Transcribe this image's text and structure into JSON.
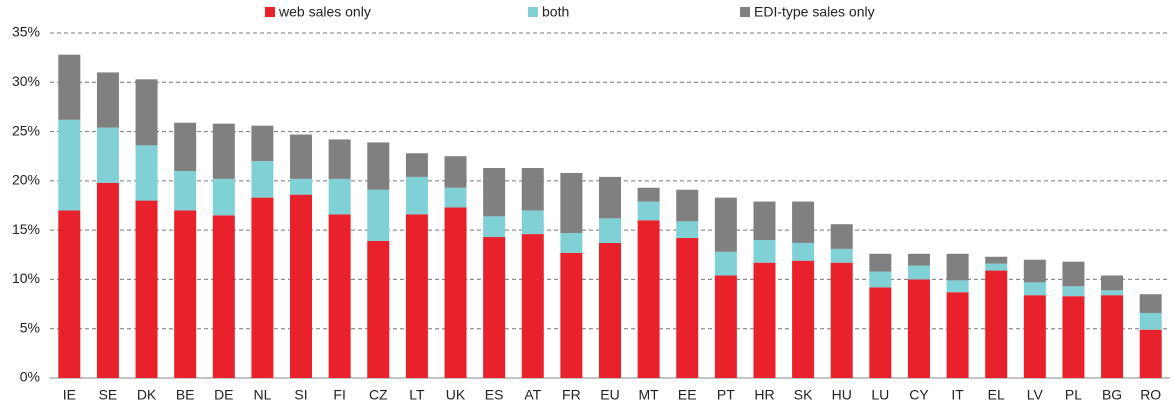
{
  "chart_data": {
    "type": "stacked_bar",
    "categories": [
      "IE",
      "SE",
      "DK",
      "BE",
      "DE",
      "NL",
      "SI",
      "FI",
      "CZ",
      "LT",
      "UK",
      "ES",
      "AT",
      "FR",
      "EU",
      "MT",
      "EE",
      "PT",
      "HR",
      "SK",
      "HU",
      "LU",
      "CY",
      "IT",
      "EL",
      "LV",
      "PL",
      "BG",
      "RO"
    ],
    "series": [
      {
        "name": "web sales only",
        "color": "#e8212b",
        "values": [
          17,
          19.8,
          18,
          17,
          16.5,
          18.3,
          18.6,
          16.6,
          13.9,
          16.6,
          17.3,
          14.3,
          14.6,
          12.7,
          13.7,
          16,
          14.2,
          10.4,
          11.7,
          11.9,
          11.7,
          9.2,
          10,
          8.7,
          10.9,
          8.4,
          8.3,
          8.4,
          4.9
        ]
      },
      {
        "name": "both",
        "color": "#7fd1d6",
        "values": [
          9.2,
          5.6,
          5.6,
          4,
          3.7,
          3.7,
          1.6,
          3.6,
          5.2,
          3.8,
          2,
          2.1,
          2.4,
          2,
          2.5,
          1.9,
          1.7,
          2.4,
          2.3,
          1.8,
          1.4,
          1.6,
          1.4,
          1.2,
          0.7,
          1.3,
          1,
          0.5,
          1.7
        ]
      },
      {
        "name": "EDI-type sales only",
        "color": "#808080",
        "values": [
          6.6,
          5.6,
          6.7,
          4.9,
          5.6,
          3.6,
          4.5,
          4,
          4.8,
          2.4,
          3.2,
          4.9,
          4.3,
          6.1,
          4.2,
          1.4,
          3.2,
          5.5,
          3.9,
          4.2,
          2.5,
          1.8,
          1.2,
          2.7,
          0.7,
          2.3,
          2.5,
          1.5,
          1.9
        ]
      }
    ],
    "ylim": [
      0,
      35
    ],
    "yticks": [
      {
        "value": 0,
        "label": "0%"
      },
      {
        "value": 5,
        "label": "5%"
      },
      {
        "value": 10,
        "label": "10%"
      },
      {
        "value": 15,
        "label": "15%"
      },
      {
        "value": 20,
        "label": "20%"
      },
      {
        "value": 25,
        "label": "25%"
      },
      {
        "value": 30,
        "label": "30%"
      },
      {
        "value": 35,
        "label": "35%"
      }
    ],
    "grid": true,
    "legend": "top"
  }
}
